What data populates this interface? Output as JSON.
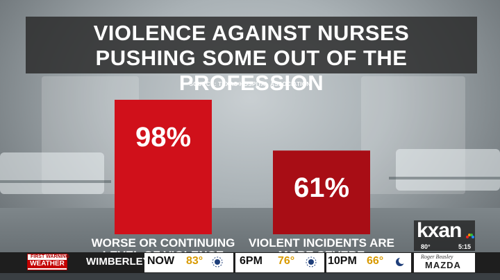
{
  "graphic": {
    "title_lines": [
      "VIOLENCE AGAINST NURSES",
      "PUSHING SOME OUT OF THE PROFESSION"
    ],
    "source": "SOURCE: TEXAS HOSPITAL ASSOCIATION"
  },
  "chart_data": {
    "type": "bar",
    "title": "VIOLENCE AGAINST NURSES PUSHING SOME OUT OF THE PROFESSION",
    "categories": [
      "WORSE OR CONTINUING LEVEL OF VIOLENCE",
      "VIOLENT INCIDENTS ARE MORE SEVERE"
    ],
    "values": [
      98,
      61
    ],
    "value_labels": [
      "98%",
      "61%"
    ],
    "colors": [
      "#d0101a",
      "#a80d15"
    ],
    "ylim": [
      0,
      100
    ],
    "grid": false,
    "legend": "none"
  },
  "logo": {
    "text": "kxan",
    "temp": "80°",
    "time": "5:15"
  },
  "ticker": {
    "badge_top": "FIRST WARNING",
    "badge_bottom": "WEATHER",
    "city": "WIMBERLEY",
    "forecast": [
      {
        "period": "NOW",
        "temp": "83°",
        "icon": "sun-icon"
      },
      {
        "period": "6PM",
        "temp": "76°",
        "icon": "sun-icon"
      },
      {
        "period": "10PM",
        "temp": "66°",
        "icon": "moon-icon"
      }
    ],
    "sponsor_top": "Roger Beasley",
    "sponsor_bottom": "MAZDA"
  }
}
